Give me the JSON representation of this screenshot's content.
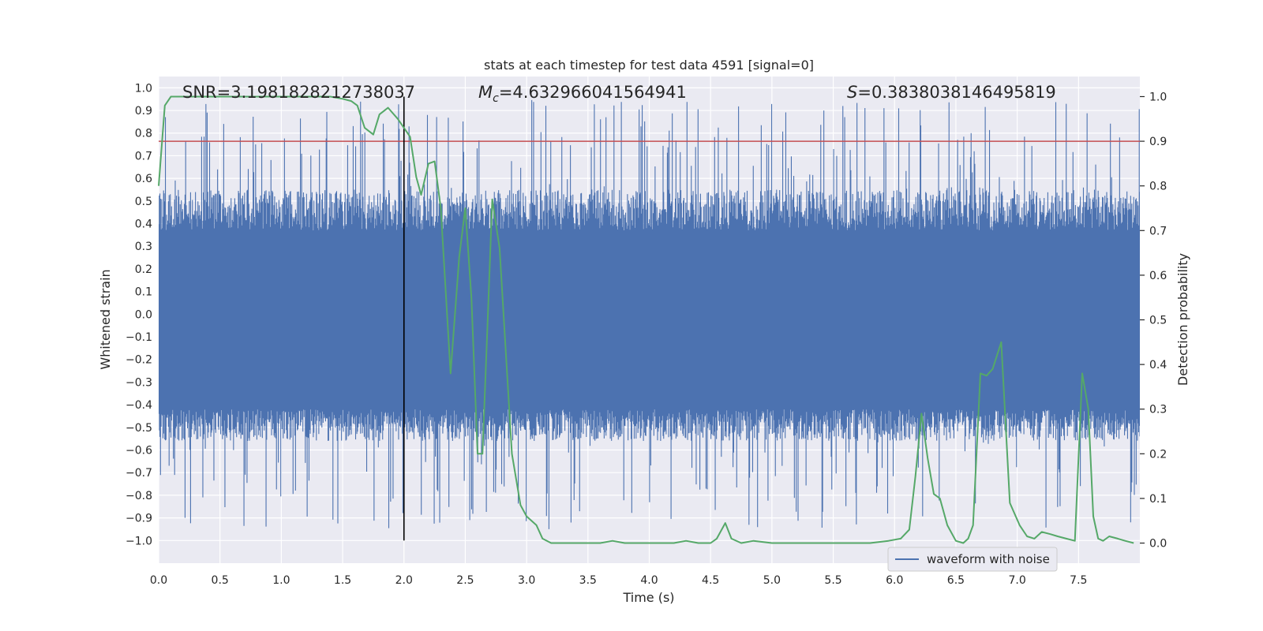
{
  "chart_data": {
    "type": "line",
    "title": "stats at each timestep for test data 4591 [signal=0]",
    "xlabel": "Time (s)",
    "ylabel_left": "Whitened strain",
    "ylabel_right": "Detection probability",
    "xlim": [
      0.0,
      8.0
    ],
    "ylim_left": [
      -1.1,
      1.05
    ],
    "ylim_right": [
      -0.045,
      1.045
    ],
    "x_ticks": [
      0.0,
      0.5,
      1.0,
      1.5,
      2.0,
      2.5,
      3.0,
      3.5,
      4.0,
      4.5,
      5.0,
      5.5,
      6.0,
      6.5,
      7.0,
      7.5
    ],
    "x_tick_labels": [
      "0.0",
      "0.5",
      "1.0",
      "1.5",
      "2.0",
      "2.5",
      "3.0",
      "3.5",
      "4.0",
      "4.5",
      "5.0",
      "5.5",
      "6.0",
      "6.5",
      "7.0",
      "7.5"
    ],
    "y_left_ticks": [
      1.0,
      0.9,
      0.8,
      0.7,
      0.6,
      0.5,
      0.4,
      0.3,
      0.2,
      0.1,
      0.0,
      -0.1,
      -0.2,
      -0.3,
      -0.4,
      -0.5,
      -0.6,
      -0.7,
      -0.8,
      -0.9,
      -1.0
    ],
    "y_left_tick_labels": [
      "1.0",
      "0.9",
      "0.8",
      "0.7",
      "0.6",
      "0.5",
      "0.4",
      "0.3",
      "0.2",
      "0.1",
      "0.0",
      "−0.1",
      "−0.2",
      "−0.3",
      "−0.4",
      "−0.5",
      "−0.6",
      "−0.7",
      "−0.8",
      "−0.9",
      "−1.0"
    ],
    "y_right_ticks": [
      1.0,
      0.9,
      0.8,
      0.7,
      0.6,
      0.5,
      0.4,
      0.3,
      0.2,
      0.1,
      0.0
    ],
    "y_right_tick_labels": [
      "1.0",
      "0.9",
      "0.8",
      "0.7",
      "0.6",
      "0.5",
      "0.4",
      "0.3",
      "0.2",
      "0.1",
      "0.0"
    ],
    "annotations": {
      "snr": "SNR=3.1981828212738037",
      "mc_symbol": "M",
      "mc_subscript": "c",
      "mc_value": "=4.632966041564941",
      "s_symbol": "S",
      "s_value": "=0.3838038146495819"
    },
    "legend": {
      "label": "waveform with noise",
      "placement": "lower-right"
    },
    "vertical_marker_x": 2.0,
    "threshold_probability": 0.9,
    "waveform": {
      "name": "waveform with noise",
      "sample_count": 4096,
      "core_range": [
        -0.42,
        0.37
      ],
      "spike_max": 0.95,
      "spike_min": -0.95,
      "color": "#4c72b0"
    },
    "probability_series": {
      "name": "detection probability",
      "color": "#55a868",
      "x": [
        0.0,
        0.05,
        0.1,
        0.2,
        0.3,
        0.5,
        0.8,
        1.0,
        1.2,
        1.4,
        1.5,
        1.57,
        1.62,
        1.68,
        1.75,
        1.8,
        1.87,
        1.95,
        2.05,
        2.1,
        2.14,
        2.2,
        2.25,
        2.3,
        2.38,
        2.45,
        2.5,
        2.55,
        2.6,
        2.64,
        2.68,
        2.72,
        2.78,
        2.83,
        2.88,
        2.95,
        3.0,
        3.08,
        3.13,
        3.2,
        3.3,
        3.5,
        3.6,
        3.7,
        3.8,
        3.9,
        4.0,
        4.1,
        4.2,
        4.3,
        4.4,
        4.5,
        4.55,
        4.62,
        4.67,
        4.75,
        4.85,
        5.0,
        5.2,
        5.4,
        5.6,
        5.8,
        5.95,
        6.05,
        6.12,
        6.17,
        6.22,
        6.27,
        6.32,
        6.37,
        6.43,
        6.5,
        6.56,
        6.6,
        6.64,
        6.7,
        6.75,
        6.8,
        6.87,
        6.94,
        7.02,
        7.08,
        7.14,
        7.2,
        7.27,
        7.33,
        7.4,
        7.47,
        7.53,
        7.58,
        7.62,
        7.66,
        7.7,
        7.75,
        7.82,
        7.88,
        7.95
      ],
      "y": [
        0.8,
        0.98,
        1.0,
        1.0,
        1.0,
        1.0,
        1.0,
        1.0,
        1.0,
        1.0,
        0.995,
        0.99,
        0.98,
        0.93,
        0.915,
        0.96,
        0.975,
        0.95,
        0.91,
        0.82,
        0.78,
        0.85,
        0.855,
        0.75,
        0.38,
        0.64,
        0.75,
        0.55,
        0.2,
        0.2,
        0.48,
        0.77,
        0.66,
        0.43,
        0.2,
        0.085,
        0.06,
        0.04,
        0.01,
        0.0,
        0.0,
        0.0,
        0.0,
        0.005,
        0.0,
        0.0,
        0.0,
        0.0,
        0.0,
        0.005,
        0.0,
        0.0,
        0.01,
        0.045,
        0.01,
        0.0,
        0.005,
        0.0,
        0.0,
        0.0,
        0.0,
        0.0,
        0.005,
        0.01,
        0.03,
        0.15,
        0.29,
        0.19,
        0.11,
        0.1,
        0.04,
        0.005,
        0.0,
        0.01,
        0.04,
        0.38,
        0.375,
        0.39,
        0.45,
        0.09,
        0.04,
        0.015,
        0.01,
        0.025,
        0.02,
        0.015,
        0.01,
        0.005,
        0.38,
        0.3,
        0.06,
        0.01,
        0.005,
        0.015,
        0.01,
        0.005,
        0.0
      ]
    }
  }
}
